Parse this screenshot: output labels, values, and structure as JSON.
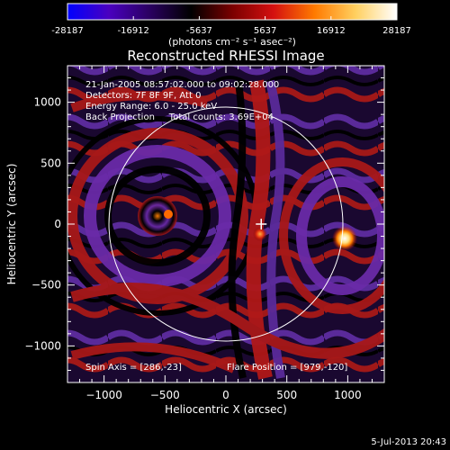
{
  "colorbar": {
    "tick_labels": [
      "-28187",
      "-16912",
      "-5637",
      "5637",
      "16912",
      "28187"
    ],
    "range": [
      -28187,
      28187
    ],
    "units_label": "(photons cm⁻² s⁻¹ asec⁻²)",
    "stops": [
      "#0000ff",
      "#4a00c0",
      "#2a0060",
      "#000000",
      "#7a0000",
      "#d41010",
      "#ff7a00",
      "#ffd060",
      "#ffffff"
    ]
  },
  "chart_data": {
    "type": "heatmap",
    "title": "Reconstructed RHESSI Image",
    "xlabel": "Heliocentric X (arcsec)",
    "ylabel": "Heliocentric Y (arcsec)",
    "xlim": [
      -1300,
      1300
    ],
    "ylim": [
      -1300,
      1300
    ],
    "x_ticks": [
      -1000,
      -500,
      0,
      500,
      1000
    ],
    "y_ticks": [
      -1000,
      -500,
      0,
      500,
      1000
    ],
    "solar_disk_radius": 960,
    "marker_position": [
      290,
      0
    ],
    "flare_position": [
      979,
      -120
    ],
    "info_lines": [
      "21-Jan-2005 08:57:02.000 to 09:02:28.000",
      "Detectors: 7F 8F 9F, Att 0",
      "Energy Range: 6.0 - 25.0 keV",
      "Back Projection     Total counts: 3.69E+04"
    ],
    "spin_axis": "Spin Axis = [286,-23]",
    "flare_label": "Flare Position = [979,-120]"
  },
  "timestamp": "5-Jul-2013 20:43"
}
